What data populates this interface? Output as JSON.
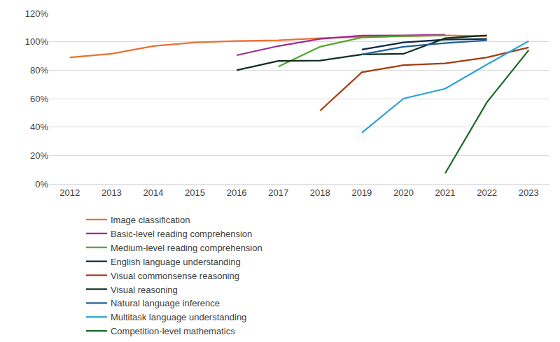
{
  "chart_data": {
    "type": "line",
    "categories": [
      "2012",
      "2013",
      "2014",
      "2015",
      "2016",
      "2017",
      "2018",
      "2019",
      "2020",
      "2021",
      "2022",
      "2023"
    ],
    "series": [
      {
        "name": "Image classification",
        "color": "#e97132",
        "values": [
          89,
          91.5,
          97,
          99.5,
          100.5,
          101,
          102.5,
          103.5,
          104,
          104.5,
          104,
          null
        ]
      },
      {
        "name": "Basic-level reading comprehension",
        "color": "#a02b93",
        "values": [
          null,
          null,
          null,
          null,
          90.5,
          97,
          102,
          104.3,
          104.5,
          105,
          null,
          null
        ]
      },
      {
        "name": "Medium-level reading comprehension",
        "color": "#4ea72e",
        "values": [
          null,
          null,
          null,
          null,
          null,
          82.5,
          96.5,
          103,
          104,
          104.5,
          null,
          null
        ]
      },
      {
        "name": "English language understanding",
        "color": "#0e2841",
        "values": [
          null,
          null,
          null,
          null,
          null,
          null,
          null,
          94.5,
          99.5,
          101.5,
          102,
          null
        ]
      },
      {
        "name": "Visual commonsense reasoning",
        "color": "#a33c12",
        "values": [
          null,
          null,
          null,
          null,
          null,
          null,
          51.5,
          78.5,
          83.5,
          84.8,
          89,
          96
        ]
      },
      {
        "name": "Visual reasoning",
        "color": "#0e2f1d",
        "values": [
          null,
          null,
          null,
          null,
          80,
          86.5,
          86.8,
          91,
          91.5,
          102.5,
          104.5,
          null
        ]
      },
      {
        "name": "Natural language inference",
        "color": "#215f9a",
        "values": [
          null,
          null,
          null,
          null,
          null,
          null,
          null,
          91,
          96.5,
          99,
          101,
          null
        ]
      },
      {
        "name": "Multitask language understanding",
        "color": "#2ea3d8",
        "values": [
          null,
          null,
          null,
          null,
          null,
          null,
          null,
          36,
          60,
          67,
          84,
          100.5
        ]
      },
      {
        "name": "Competition-level mathematics",
        "color": "#196b24",
        "values": [
          null,
          null,
          null,
          null,
          null,
          null,
          null,
          null,
          null,
          7.5,
          57.5,
          94
        ]
      }
    ],
    "ylim": [
      0,
      120
    ],
    "yticks": [
      {
        "value": 0,
        "label": "0%"
      },
      {
        "value": 20,
        "label": "20%"
      },
      {
        "value": 40,
        "label": "40%"
      },
      {
        "value": 60,
        "label": "60%"
      },
      {
        "value": 80,
        "label": "80%"
      },
      {
        "value": 100,
        "label": "100%"
      },
      {
        "value": 120,
        "label": "120%"
      }
    ],
    "grid": true,
    "legend": "bottom"
  }
}
